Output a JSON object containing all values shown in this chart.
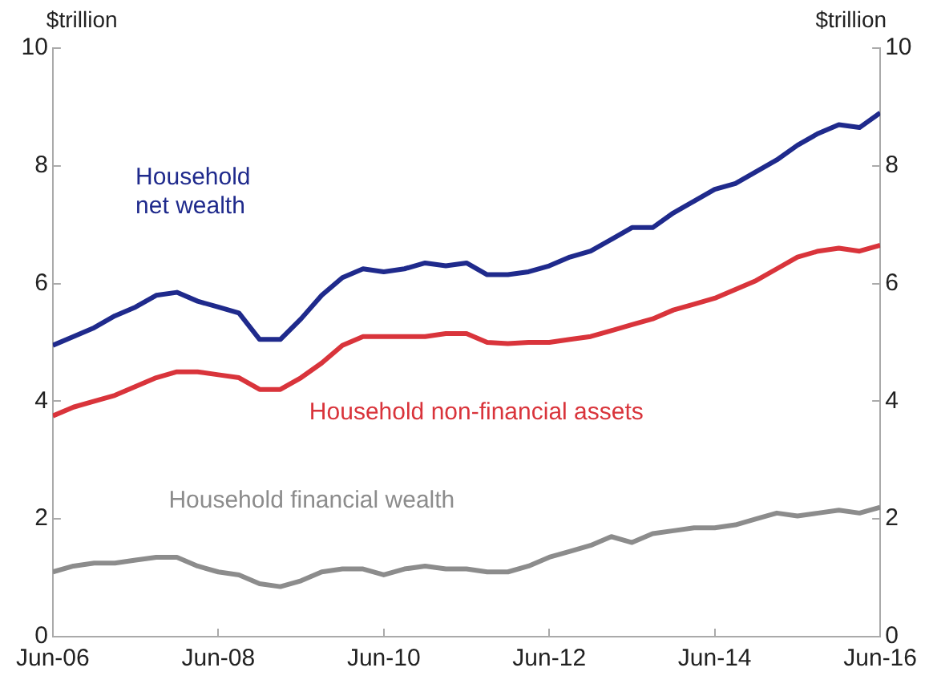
{
  "chart_data": {
    "type": "line",
    "ylabel": "$trillion",
    "y2label": "$trillion",
    "x": [
      "2006-06",
      "2006-09",
      "2006-12",
      "2007-03",
      "2007-06",
      "2007-09",
      "2007-12",
      "2008-03",
      "2008-06",
      "2008-09",
      "2008-12",
      "2009-03",
      "2009-06",
      "2009-09",
      "2009-12",
      "2010-03",
      "2010-06",
      "2010-09",
      "2010-12",
      "2011-03",
      "2011-06",
      "2011-09",
      "2011-12",
      "2012-03",
      "2012-06",
      "2012-09",
      "2012-12",
      "2013-03",
      "2013-06",
      "2013-09",
      "2013-12",
      "2014-03",
      "2014-06",
      "2014-09",
      "2014-12",
      "2015-03",
      "2015-06",
      "2015-09",
      "2015-12",
      "2016-03",
      "2016-06"
    ],
    "series": [
      {
        "name": "Household net wealth",
        "color": "#1f2a8c",
        "values": [
          4.95,
          5.1,
          5.25,
          5.45,
          5.6,
          5.8,
          5.85,
          5.7,
          5.6,
          5.5,
          5.05,
          5.05,
          5.4,
          5.8,
          6.1,
          6.25,
          6.2,
          6.25,
          6.35,
          6.3,
          6.35,
          6.15,
          6.15,
          6.2,
          6.3,
          6.45,
          6.55,
          6.75,
          6.95,
          6.95,
          7.2,
          7.4,
          7.6,
          7.7,
          7.9,
          8.1,
          8.35,
          8.55,
          8.7,
          8.65,
          8.9
        ]
      },
      {
        "name": "Household non-financial assets",
        "color": "#d9343b",
        "values": [
          3.75,
          3.9,
          4.0,
          4.1,
          4.25,
          4.4,
          4.5,
          4.5,
          4.45,
          4.4,
          4.2,
          4.2,
          4.4,
          4.65,
          4.95,
          5.1,
          5.1,
          5.1,
          5.1,
          5.15,
          5.15,
          5.0,
          4.98,
          5.0,
          5.0,
          5.05,
          5.1,
          5.2,
          5.3,
          5.4,
          5.55,
          5.65,
          5.75,
          5.9,
          6.05,
          6.25,
          6.45,
          6.55,
          6.6,
          6.55,
          6.65
        ]
      },
      {
        "name": "Household financial wealth",
        "color": "#8c8c8c",
        "values": [
          1.1,
          1.2,
          1.25,
          1.25,
          1.3,
          1.35,
          1.35,
          1.2,
          1.1,
          1.05,
          0.9,
          0.85,
          0.95,
          1.1,
          1.15,
          1.15,
          1.05,
          1.15,
          1.2,
          1.15,
          1.15,
          1.1,
          1.1,
          1.2,
          1.35,
          1.45,
          1.55,
          1.7,
          1.6,
          1.75,
          1.8,
          1.85,
          1.85,
          1.9,
          2.0,
          2.1,
          2.05,
          2.1,
          2.15,
          2.1,
          2.2
        ]
      }
    ],
    "xlim": [
      "2006-06",
      "2016-06"
    ],
    "xticks": [
      {
        "value": "2006-06",
        "label": "Jun-06"
      },
      {
        "value": "2008-06",
        "label": "Jun-08"
      },
      {
        "value": "2010-06",
        "label": "Jun-10"
      },
      {
        "value": "2012-06",
        "label": "Jun-12"
      },
      {
        "value": "2014-06",
        "label": "Jun-14"
      },
      {
        "value": "2016-06",
        "label": "Jun-16"
      }
    ],
    "ylim": [
      0,
      10
    ],
    "yticks": [
      0,
      2,
      4,
      6,
      8,
      10
    ],
    "y2lim": [
      0,
      10
    ],
    "y2ticks": [
      0,
      2,
      4,
      6,
      8,
      10
    ],
    "grid": false,
    "legend": false
  }
}
